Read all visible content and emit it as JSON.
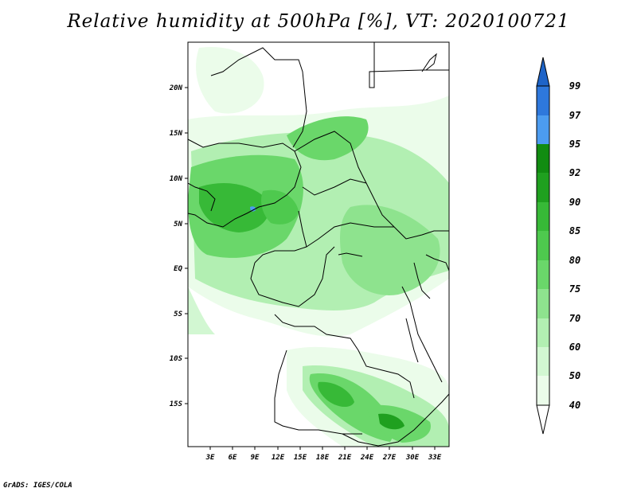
{
  "title": "Relative humidity at 500hPa [%], VT: 2020100721",
  "footer": "GrADS: IGES/COLA",
  "map": {
    "lat_labels": [
      "20N",
      "15N",
      "10N",
      "5N",
      "EQ",
      "5S",
      "10S",
      "15S"
    ],
    "lon_labels": [
      "3E",
      "6E",
      "9E",
      "12E",
      "15E",
      "18E",
      "21E",
      "24E",
      "27E",
      "30E",
      "33E"
    ]
  },
  "colorbar": {
    "labels": [
      "99",
      "97",
      "95",
      "92",
      "90",
      "85",
      "80",
      "75",
      "70",
      "60",
      "50",
      "40"
    ],
    "colors": {
      "above_99": "#1e64c8",
      "97_99": "#2e78dc",
      "95_97": "#4c9cf0",
      "92_95": "#118c11",
      "90_92": "#1fa01f",
      "85_90": "#37b937",
      "80_85": "#4ec94e",
      "75_80": "#6ad76a",
      "70_75": "#8ee38e",
      "60_70": "#b2efb2",
      "50_60": "#d2f7d2",
      "40_50": "#ebfcea",
      "below_40": "#ffffff"
    }
  }
}
